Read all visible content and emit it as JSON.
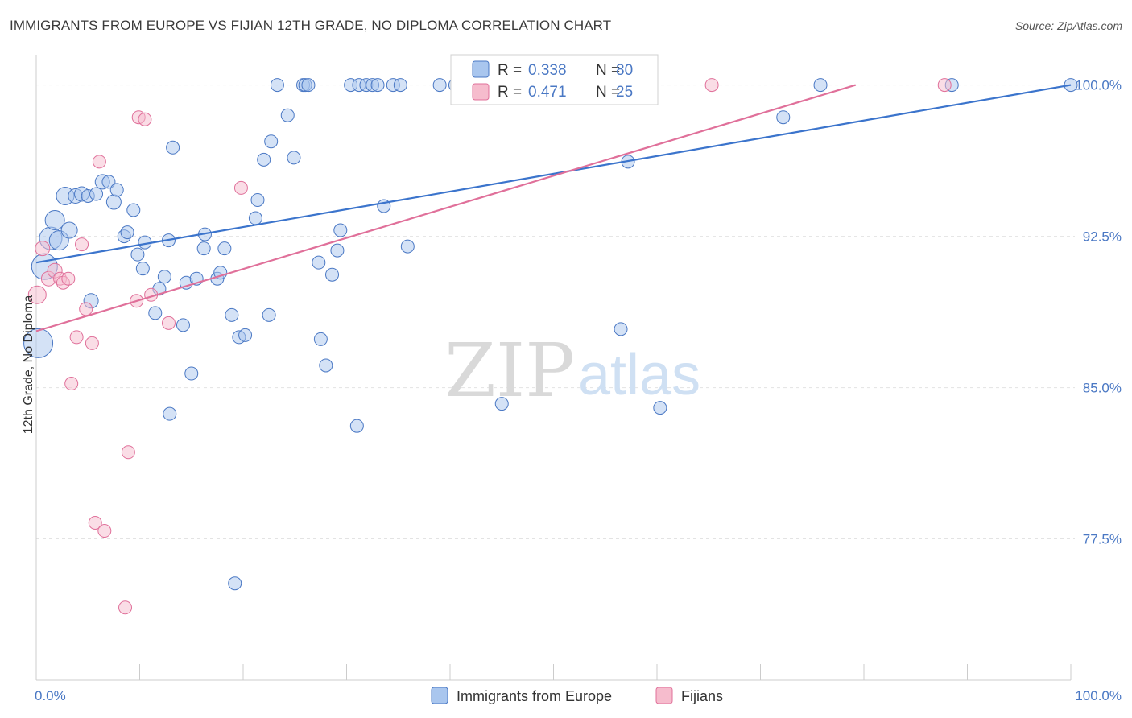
{
  "title": "IMMIGRANTS FROM EUROPE VS FIJIAN 12TH GRADE, NO DIPLOMA CORRELATION CHART",
  "source": "Source: ZipAtlas.com",
  "watermark": {
    "zip": "ZIP",
    "atlas": "atlas"
  },
  "colors": {
    "blue": "#4a78c4",
    "blue_fill": "#a9c6ee",
    "pink": "#e0709a",
    "pink_fill": "#f6bccd",
    "grid": "#e3e3e3"
  },
  "legend": {
    "r_label": "R =",
    "n_label": "N =",
    "rows": [
      {
        "series": "Immigrants from Europe",
        "r": "0.338",
        "n": "80",
        "color": "blue"
      },
      {
        "series": "Fijians",
        "r": "0.471",
        "n": "25",
        "color": "pink"
      }
    ]
  },
  "chart_data": {
    "type": "scatter",
    "title": "IMMIGRANTS FROM EUROPE VS FIJIAN 12TH GRADE, NO DIPLOMA CORRELATION CHART",
    "xlabel": "",
    "ylabel": "12th Grade, No Diploma",
    "xlim": [
      0,
      100
    ],
    "ylim": [
      70.5,
      101.5
    ],
    "x_tick_labels": [
      {
        "value": 0,
        "label": "0.0%"
      },
      {
        "value": 100,
        "label": "100.0%"
      }
    ],
    "y_ticks": [
      {
        "value": 77.5,
        "label": "77.5%"
      },
      {
        "value": 85.0,
        "label": "85.0%"
      },
      {
        "value": 92.5,
        "label": "92.5%"
      },
      {
        "value": 100.0,
        "label": "100.0%"
      }
    ],
    "grid": true,
    "legend_position": "top-center",
    "series": [
      {
        "name": "Immigrants from Europe",
        "color": "blue",
        "trend": {
          "x": [
            0,
            100
          ],
          "y": [
            91.2,
            100.0
          ]
        },
        "points": [
          {
            "x": 0.2,
            "y": 87.2,
            "s": 18
          },
          {
            "x": 0.8,
            "y": 91.0,
            "s": 16
          },
          {
            "x": 1.4,
            "y": 92.4,
            "s": 14
          },
          {
            "x": 2.2,
            "y": 92.3,
            "s": 12
          },
          {
            "x": 1.8,
            "y": 93.3,
            "s": 12
          },
          {
            "x": 3.2,
            "y": 92.8,
            "s": 10
          },
          {
            "x": 2.8,
            "y": 94.5,
            "s": 11
          },
          {
            "x": 3.8,
            "y": 94.5,
            "s": 9
          },
          {
            "x": 4.4,
            "y": 94.6,
            "s": 9
          },
          {
            "x": 5.0,
            "y": 94.5,
            "s": 8
          },
          {
            "x": 5.8,
            "y": 94.6,
            "s": 8
          },
          {
            "x": 6.4,
            "y": 95.2,
            "s": 9
          },
          {
            "x": 7.0,
            "y": 95.2,
            "s": 8
          },
          {
            "x": 7.5,
            "y": 94.2,
            "s": 9
          },
          {
            "x": 7.8,
            "y": 94.8,
            "s": 8
          },
          {
            "x": 9.4,
            "y": 93.8,
            "s": 8
          },
          {
            "x": 8.5,
            "y": 92.5,
            "s": 8
          },
          {
            "x": 8.8,
            "y": 92.7,
            "s": 8
          },
          {
            "x": 10.5,
            "y": 92.2,
            "s": 8
          },
          {
            "x": 12.8,
            "y": 92.3,
            "s": 8
          },
          {
            "x": 9.8,
            "y": 91.6,
            "s": 8
          },
          {
            "x": 10.3,
            "y": 90.9,
            "s": 8
          },
          {
            "x": 12.4,
            "y": 90.5,
            "s": 8
          },
          {
            "x": 11.9,
            "y": 89.9,
            "s": 8
          },
          {
            "x": 14.5,
            "y": 90.2,
            "s": 8
          },
          {
            "x": 15.5,
            "y": 90.4,
            "s": 8
          },
          {
            "x": 17.5,
            "y": 90.4,
            "s": 8
          },
          {
            "x": 17.8,
            "y": 90.7,
            "s": 8
          },
          {
            "x": 16.3,
            "y": 92.6,
            "s": 8
          },
          {
            "x": 16.2,
            "y": 91.9,
            "s": 8
          },
          {
            "x": 18.2,
            "y": 91.9,
            "s": 8
          },
          {
            "x": 5.3,
            "y": 89.3,
            "s": 9
          },
          {
            "x": 11.5,
            "y": 88.7,
            "s": 8
          },
          {
            "x": 14.2,
            "y": 88.1,
            "s": 8
          },
          {
            "x": 18.9,
            "y": 88.6,
            "s": 8
          },
          {
            "x": 19.6,
            "y": 87.5,
            "s": 8
          },
          {
            "x": 20.2,
            "y": 87.6,
            "s": 8
          },
          {
            "x": 22.5,
            "y": 88.6,
            "s": 8
          },
          {
            "x": 15.0,
            "y": 85.7,
            "s": 8
          },
          {
            "x": 12.9,
            "y": 83.7,
            "s": 8
          },
          {
            "x": 19.2,
            "y": 75.3,
            "s": 8
          },
          {
            "x": 13.2,
            "y": 96.9,
            "s": 8
          },
          {
            "x": 21.2,
            "y": 93.4,
            "s": 8
          },
          {
            "x": 21.4,
            "y": 94.3,
            "s": 8
          },
          {
            "x": 22.0,
            "y": 96.3,
            "s": 8
          },
          {
            "x": 22.7,
            "y": 97.2,
            "s": 8
          },
          {
            "x": 24.9,
            "y": 96.4,
            "s": 8
          },
          {
            "x": 24.3,
            "y": 98.5,
            "s": 8
          },
          {
            "x": 23.3,
            "y": 100.0,
            "s": 8
          },
          {
            "x": 25.8,
            "y": 100.0,
            "s": 8
          },
          {
            "x": 26.0,
            "y": 100.0,
            "s": 8
          },
          {
            "x": 26.3,
            "y": 100.0,
            "s": 8
          },
          {
            "x": 30.4,
            "y": 100.0,
            "s": 8
          },
          {
            "x": 31.2,
            "y": 100.0,
            "s": 8
          },
          {
            "x": 31.9,
            "y": 100.0,
            "s": 8
          },
          {
            "x": 32.5,
            "y": 100.0,
            "s": 8
          },
          {
            "x": 33.0,
            "y": 100.0,
            "s": 8
          },
          {
            "x": 34.5,
            "y": 100.0,
            "s": 8
          },
          {
            "x": 35.2,
            "y": 100.0,
            "s": 8
          },
          {
            "x": 39.0,
            "y": 100.0,
            "s": 8
          },
          {
            "x": 40.5,
            "y": 100.0,
            "s": 8
          },
          {
            "x": 47.2,
            "y": 100.0,
            "s": 8
          },
          {
            "x": 53.0,
            "y": 100.0,
            "s": 8
          },
          {
            "x": 54.8,
            "y": 100.0,
            "s": 8
          },
          {
            "x": 75.8,
            "y": 100.0,
            "s": 8
          },
          {
            "x": 88.5,
            "y": 100.0,
            "s": 8
          },
          {
            "x": 100.0,
            "y": 100.0,
            "s": 8
          },
          {
            "x": 27.3,
            "y": 91.2,
            "s": 8
          },
          {
            "x": 29.1,
            "y": 91.8,
            "s": 8
          },
          {
            "x": 28.6,
            "y": 90.6,
            "s": 8
          },
          {
            "x": 29.4,
            "y": 92.8,
            "s": 8
          },
          {
            "x": 33.6,
            "y": 94.0,
            "s": 8
          },
          {
            "x": 35.9,
            "y": 92.0,
            "s": 8
          },
          {
            "x": 27.5,
            "y": 87.4,
            "s": 8
          },
          {
            "x": 28.0,
            "y": 86.1,
            "s": 8
          },
          {
            "x": 31.0,
            "y": 83.1,
            "s": 8
          },
          {
            "x": 45.0,
            "y": 84.2,
            "s": 8
          },
          {
            "x": 56.5,
            "y": 87.9,
            "s": 8
          },
          {
            "x": 60.3,
            "y": 84.0,
            "s": 8
          },
          {
            "x": 57.2,
            "y": 96.2,
            "s": 8
          },
          {
            "x": 72.2,
            "y": 98.4,
            "s": 8
          }
        ]
      },
      {
        "name": "Fijians",
        "color": "pink",
        "trend": {
          "x": [
            0,
            79.2
          ],
          "y": [
            87.8,
            100.0
          ]
        },
        "points": [
          {
            "x": 0.1,
            "y": 89.6,
            "s": 11
          },
          {
            "x": 0.6,
            "y": 91.9,
            "s": 9
          },
          {
            "x": 1.2,
            "y": 90.4,
            "s": 9
          },
          {
            "x": 1.8,
            "y": 90.8,
            "s": 9
          },
          {
            "x": 2.3,
            "y": 90.4,
            "s": 8
          },
          {
            "x": 2.6,
            "y": 90.2,
            "s": 8
          },
          {
            "x": 3.1,
            "y": 90.4,
            "s": 8
          },
          {
            "x": 3.9,
            "y": 87.5,
            "s": 8
          },
          {
            "x": 4.4,
            "y": 92.1,
            "s": 8
          },
          {
            "x": 4.8,
            "y": 88.9,
            "s": 8
          },
          {
            "x": 5.4,
            "y": 87.2,
            "s": 8
          },
          {
            "x": 3.4,
            "y": 85.2,
            "s": 8
          },
          {
            "x": 6.1,
            "y": 96.2,
            "s": 8
          },
          {
            "x": 9.7,
            "y": 89.3,
            "s": 8
          },
          {
            "x": 11.1,
            "y": 89.6,
            "s": 8
          },
          {
            "x": 12.8,
            "y": 88.2,
            "s": 8
          },
          {
            "x": 9.9,
            "y": 98.4,
            "s": 8
          },
          {
            "x": 10.5,
            "y": 98.3,
            "s": 8
          },
          {
            "x": 19.8,
            "y": 94.9,
            "s": 8
          },
          {
            "x": 8.9,
            "y": 81.8,
            "s": 8
          },
          {
            "x": 5.7,
            "y": 78.3,
            "s": 8
          },
          {
            "x": 6.6,
            "y": 77.9,
            "s": 8
          },
          {
            "x": 8.6,
            "y": 74.1,
            "s": 8
          },
          {
            "x": 65.3,
            "y": 100.0,
            "s": 8
          },
          {
            "x": 87.8,
            "y": 100.0,
            "s": 8
          }
        ]
      }
    ]
  }
}
